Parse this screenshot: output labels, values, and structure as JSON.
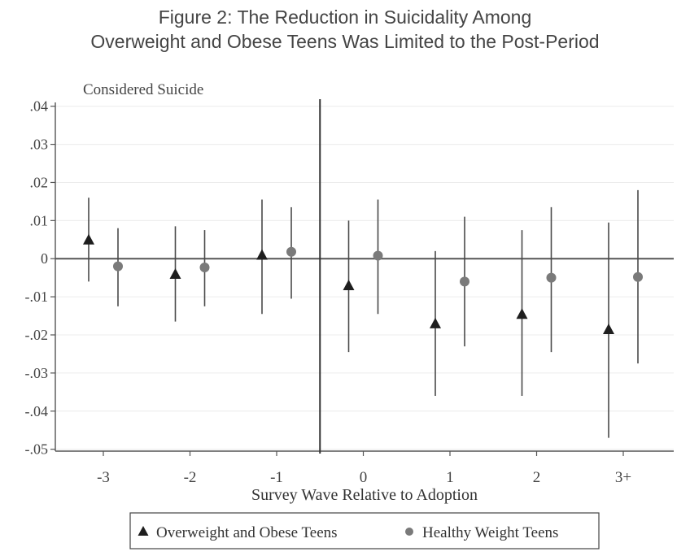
{
  "figure": {
    "title_line1": "Figure 2: The Reduction in Suicidality Among",
    "title_line2": "Overweight and Obese Teens Was Limited to the Post-Period"
  },
  "chart_data": {
    "type": "scatter",
    "subtitle": "Considered Suicide",
    "xlabel": "Survey Wave Relative to Adoption",
    "ylabel": "",
    "categories": [
      "-3",
      "-2",
      "-1",
      "0",
      "1",
      "2",
      "3+"
    ],
    "ylim": [
      -0.05,
      0.04
    ],
    "yticks": [
      0.04,
      0.03,
      0.02,
      0.01,
      0,
      -0.01,
      -0.02,
      -0.03,
      -0.04,
      -0.05
    ],
    "ytick_labels": [
      ".04",
      ".03",
      ".02",
      ".01",
      "0",
      "-.01",
      "-.02",
      "-.03",
      "-.04",
      "-.05"
    ],
    "reference_lines": {
      "horizontal_y": 0,
      "vertical_between": [
        "-1",
        "0"
      ]
    },
    "grid": true,
    "legend_position": "bottom",
    "series": [
      {
        "name": "Overweight and Obese Teens",
        "marker": "triangle",
        "color": "#1e1e1e",
        "values": [
          0.005,
          -0.004,
          0.001,
          -0.007,
          -0.017,
          -0.0145,
          -0.0185
        ],
        "ci_low": [
          -0.006,
          -0.0165,
          -0.0145,
          -0.0245,
          -0.036,
          -0.036,
          -0.047
        ],
        "ci_high": [
          0.016,
          0.0085,
          0.0155,
          0.01,
          0.002,
          0.0075,
          0.0095
        ]
      },
      {
        "name": "Healthy Weight Teens",
        "marker": "circle",
        "color": "#7a7a7a",
        "values": [
          -0.002,
          -0.0023,
          0.0018,
          0.0008,
          -0.006,
          -0.005,
          -0.0048
        ],
        "ci_low": [
          -0.0125,
          -0.0125,
          -0.0105,
          -0.0145,
          -0.023,
          -0.0245,
          -0.0275
        ],
        "ci_high": [
          0.008,
          0.0075,
          0.0135,
          0.0155,
          0.011,
          0.0135,
          0.018
        ]
      }
    ]
  }
}
